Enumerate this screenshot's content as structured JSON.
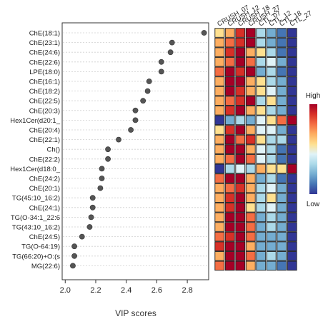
{
  "chart_data": {
    "type": "scatter",
    "xlabel": "VIP scores",
    "xlim": [
      1.98,
      2.94
    ],
    "xticks": [
      2.0,
      2.2,
      2.4,
      2.6,
      2.8
    ],
    "xtick_labels": [
      "2.0",
      "2.2",
      "2.4",
      "2.6",
      "2.8"
    ],
    "features": [
      "ChE(18:1)",
      "ChE(23:1)",
      "ChE(24:6)",
      "ChE(22:6)",
      "LPE(18:0)",
      "ChE(16:1)",
      "ChE(18:2)",
      "ChE(22:5)",
      "ChE(20:3)",
      "Hex1Cer(d20:1_",
      "ChE(20:4)",
      "ChE(22:1)",
      "Ch()",
      "ChE(22:2)",
      "Hex1Cer(d18:0_",
      "ChE(24:2)",
      "ChE(20:1)",
      "TG(45:10_16:2)",
      "ChE(24:1)",
      "TG(O-34:1_22:6",
      "TG(43:10_16:2)",
      "ChE(24:5)",
      "TG(O-64:19)",
      "TG(66:20)+O:(s",
      "MG(22:6)"
    ],
    "vip_scores": [
      2.91,
      2.7,
      2.69,
      2.63,
      2.63,
      2.55,
      2.54,
      2.51,
      2.46,
      2.46,
      2.43,
      2.35,
      2.28,
      2.28,
      2.24,
      2.24,
      2.23,
      2.18,
      2.18,
      2.17,
      2.16,
      2.11,
      2.06,
      2.06,
      2.05
    ],
    "heatmap": {
      "columns": [
        "CRUSH_07",
        "CRUSH_12",
        "CRUSH_18",
        "CRUSH_27",
        "CTL_07",
        "CTL_12",
        "CTL_18",
        "CTL_27"
      ],
      "values": [
        [
          0.2,
          0.4,
          0.7,
          1.0,
          -0.3,
          -0.5,
          -0.7,
          -1.0
        ],
        [
          0.3,
          0.5,
          0.8,
          0.9,
          -0.3,
          -0.6,
          -0.7,
          -1.0
        ],
        [
          0.3,
          0.8,
          0.9,
          0.4,
          0.0,
          -0.3,
          -0.7,
          -1.0
        ],
        [
          0.3,
          0.5,
          0.9,
          0.6,
          -0.3,
          -0.2,
          -0.6,
          -1.0
        ],
        [
          0.5,
          1.0,
          0.8,
          0.9,
          -0.5,
          -0.3,
          -0.7,
          -1.0
        ],
        [
          0.4,
          0.9,
          0.9,
          0.3,
          0.2,
          -0.3,
          -0.6,
          -1.0
        ],
        [
          0.4,
          0.9,
          0.8,
          0.3,
          0.0,
          -0.2,
          -0.6,
          -1.0
        ],
        [
          0.3,
          0.6,
          0.8,
          0.9,
          -0.3,
          0.0,
          -0.5,
          -1.0
        ],
        [
          0.4,
          0.8,
          0.9,
          0.4,
          0.1,
          -0.3,
          -0.6,
          -1.0
        ],
        [
          -1.0,
          -0.5,
          -0.4,
          -0.6,
          -0.2,
          0.2,
          0.5,
          1.0
        ],
        [
          0.2,
          0.8,
          0.9,
          0.4,
          -0.1,
          -0.2,
          -0.6,
          -1.0
        ],
        [
          0.3,
          0.9,
          0.6,
          0.8,
          0.0,
          -0.3,
          -0.4,
          -1.0
        ],
        [
          0.3,
          0.9,
          1.0,
          0.4,
          -0.2,
          -0.4,
          -0.7,
          -0.9
        ],
        [
          0.4,
          0.5,
          0.9,
          0.6,
          -0.2,
          -0.4,
          -0.7,
          -1.0
        ],
        [
          -1.0,
          -0.4,
          -0.2,
          -0.3,
          0.3,
          0.2,
          0.2,
          1.0
        ],
        [
          0.6,
          0.9,
          1.0,
          0.4,
          -0.5,
          -0.4,
          -0.7,
          -1.0
        ],
        [
          0.4,
          0.6,
          0.8,
          0.3,
          -0.4,
          -0.2,
          -0.6,
          -1.0
        ],
        [
          0.3,
          0.8,
          1.0,
          0.4,
          -0.3,
          0.1,
          -0.6,
          -1.0
        ],
        [
          0.4,
          0.7,
          0.9,
          0.2,
          -0.4,
          -0.2,
          -0.6,
          -1.0
        ],
        [
          0.3,
          0.9,
          1.0,
          0.6,
          -0.6,
          -0.3,
          -0.6,
          -1.0
        ],
        [
          0.3,
          0.9,
          1.0,
          0.5,
          -0.6,
          -0.4,
          -0.6,
          -1.0
        ],
        [
          0.5,
          0.8,
          1.0,
          0.6,
          -0.6,
          -0.5,
          -0.6,
          -0.9
        ],
        [
          0.7,
          1.0,
          0.9,
          0.4,
          -0.6,
          -0.5,
          -0.6,
          -0.9
        ],
        [
          0.3,
          0.9,
          1.0,
          0.5,
          -0.6,
          -0.3,
          -0.6,
          -1.0
        ],
        [
          0.6,
          1.0,
          0.9,
          0.3,
          -0.6,
          -0.5,
          -0.7,
          -0.9
        ]
      ]
    },
    "legend": {
      "high_label": "High",
      "low_label": "Low",
      "colors": [
        "#313695",
        "#4575b4",
        "#74add1",
        "#abd9e9",
        "#e0f3f8",
        "#fee090",
        "#fdae61",
        "#f46d43",
        "#d73027",
        "#a50026"
      ]
    },
    "grid": true
  }
}
